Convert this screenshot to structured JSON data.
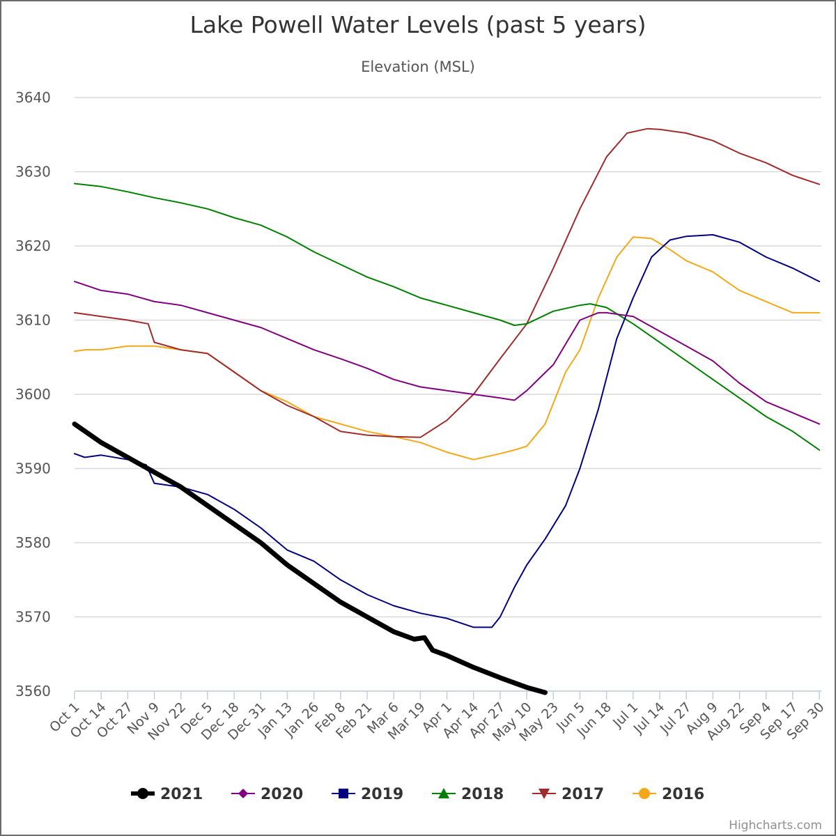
{
  "chart_data": {
    "type": "line",
    "title": "Lake Powell Water Levels (past 5 years)",
    "subtitle": "Elevation (MSL)",
    "ylim": [
      3560,
      3640
    ],
    "yticks": [
      3560,
      3570,
      3580,
      3590,
      3600,
      3610,
      3620,
      3630,
      3640
    ],
    "xlim": [
      0,
      365
    ],
    "grid": true,
    "xticks": [
      {
        "label": "Oct 1",
        "day": 0
      },
      {
        "label": "Oct 14",
        "day": 13
      },
      {
        "label": "Oct 27",
        "day": 26
      },
      {
        "label": "Nov 9",
        "day": 39
      },
      {
        "label": "Nov 22",
        "day": 52
      },
      {
        "label": "Dec 5",
        "day": 65
      },
      {
        "label": "Dec 18",
        "day": 78
      },
      {
        "label": "Dec 31",
        "day": 91
      },
      {
        "label": "Jan 13",
        "day": 104
      },
      {
        "label": "Jan 26",
        "day": 117
      },
      {
        "label": "Feb 8",
        "day": 130
      },
      {
        "label": "Feb 21",
        "day": 143
      },
      {
        "label": "Mar 6",
        "day": 156
      },
      {
        "label": "Mar 19",
        "day": 169
      },
      {
        "label": "Apr 1",
        "day": 182
      },
      {
        "label": "Apr 14",
        "day": 195
      },
      {
        "label": "Apr 27",
        "day": 208
      },
      {
        "label": "May 10",
        "day": 221
      },
      {
        "label": "May 23",
        "day": 234
      },
      {
        "label": "Jun 5",
        "day": 247
      },
      {
        "label": "Jun 18",
        "day": 260
      },
      {
        "label": "Jul 1",
        "day": 273
      },
      {
        "label": "Jul 14",
        "day": 286
      },
      {
        "label": "Jul 27",
        "day": 299
      },
      {
        "label": "Aug 9",
        "day": 312
      },
      {
        "label": "Aug 22",
        "day": 325
      },
      {
        "label": "Sep 4",
        "day": 338
      },
      {
        "label": "Sep 17",
        "day": 351
      },
      {
        "label": "Sep 30",
        "day": 364
      }
    ],
    "legend_position": "bottom-center",
    "series": [
      {
        "name": "2021",
        "color": "#000000",
        "width": 7,
        "marker": "circle",
        "x": [
          0,
          13,
          26,
          39,
          52,
          65,
          78,
          91,
          104,
          117,
          130,
          143,
          156,
          166,
          171,
          175,
          182,
          195,
          208,
          221,
          230
        ],
        "y": [
          3596,
          3593.5,
          3591.5,
          3589.5,
          3587.5,
          3585,
          3582.5,
          3580,
          3577,
          3574.5,
          3572,
          3570,
          3568,
          3567,
          3567.2,
          3565.5,
          3564.8,
          3563.2,
          3561.8,
          3560.5,
          3559.8
        ]
      },
      {
        "name": "2020",
        "color": "#800080",
        "width": 2,
        "marker": "diamond",
        "x": [
          0,
          13,
          26,
          39,
          52,
          65,
          78,
          91,
          104,
          117,
          130,
          143,
          156,
          169,
          182,
          195,
          208,
          215,
          221,
          234,
          247,
          256,
          260,
          273,
          286,
          299,
          312,
          325,
          338,
          351,
          364
        ],
        "y": [
          3615.2,
          3614,
          3613.5,
          3612.5,
          3612,
          3611,
          3610,
          3609,
          3607.5,
          3606,
          3604.8,
          3603.5,
          3602,
          3601,
          3600.5,
          3600,
          3599.5,
          3599.2,
          3600.5,
          3604,
          3610,
          3611,
          3611,
          3610.5,
          3608.5,
          3606.5,
          3604.5,
          3601.5,
          3599,
          3597.5,
          3596
        ]
      },
      {
        "name": "2019",
        "color": "#000080",
        "width": 2,
        "marker": "square",
        "x": [
          0,
          5,
          13,
          26,
          35,
          39,
          52,
          65,
          78,
          91,
          104,
          117,
          130,
          143,
          156,
          169,
          182,
          195,
          204,
          208,
          215,
          221,
          230,
          240,
          247,
          256,
          265,
          273,
          282,
          291,
          299,
          312,
          325,
          338,
          351,
          364
        ],
        "y": [
          3592,
          3591.5,
          3591.8,
          3591.2,
          3590.5,
          3588,
          3587.5,
          3586.5,
          3584.5,
          3582,
          3579,
          3577.5,
          3575,
          3573,
          3571.5,
          3570.5,
          3569.8,
          3568.6,
          3568.6,
          3570,
          3574,
          3577,
          3580.5,
          3585,
          3590,
          3598,
          3607.5,
          3613,
          3618.5,
          3620.8,
          3621.3,
          3621.5,
          3620.5,
          3618.5,
          3617,
          3615.2
        ]
      },
      {
        "name": "2018",
        "color": "#008000",
        "width": 2,
        "marker": "triangle",
        "x": [
          0,
          13,
          26,
          39,
          52,
          65,
          78,
          91,
          104,
          117,
          130,
          143,
          156,
          169,
          182,
          195,
          208,
          215,
          221,
          234,
          247,
          252,
          260,
          273,
          286,
          299,
          312,
          325,
          338,
          351,
          364
        ],
        "y": [
          3628.4,
          3628,
          3627.3,
          3626.5,
          3625.8,
          3625,
          3623.8,
          3622.8,
          3621.2,
          3619.2,
          3617.5,
          3615.8,
          3614.5,
          3613,
          3612,
          3611,
          3610,
          3609.3,
          3609.5,
          3611.2,
          3612,
          3612.2,
          3611.7,
          3609.5,
          3607,
          3604.5,
          3602,
          3599.5,
          3597,
          3595,
          3592.5
        ]
      },
      {
        "name": "2017",
        "color": "#9f2b2b",
        "width": 2,
        "marker": "triangle-down",
        "x": [
          0,
          13,
          26,
          36,
          39,
          52,
          65,
          78,
          91,
          104,
          117,
          130,
          143,
          156,
          169,
          182,
          195,
          208,
          221,
          234,
          247,
          260,
          270,
          280,
          286,
          299,
          312,
          325,
          338,
          351,
          364
        ],
        "y": [
          3611,
          3610.5,
          3610,
          3609.5,
          3607,
          3606,
          3605.5,
          3603,
          3600.5,
          3598.5,
          3597,
          3595,
          3594.5,
          3594.3,
          3594.2,
          3596.5,
          3600,
          3604.8,
          3609.5,
          3617,
          3625,
          3632,
          3635.2,
          3635.8,
          3635.7,
          3635.2,
          3634.2,
          3632.5,
          3631.2,
          3629.5,
          3628.3
        ]
      },
      {
        "name": "2016",
        "color": "#f4a817",
        "width": 2,
        "marker": "circle",
        "x": [
          0,
          5,
          13,
          26,
          39,
          52,
          65,
          78,
          91,
          104,
          117,
          130,
          143,
          156,
          169,
          182,
          195,
          208,
          215,
          221,
          230,
          240,
          247,
          256,
          265,
          273,
          282,
          291,
          299,
          312,
          325,
          338,
          351,
          364
        ],
        "y": [
          3605.8,
          3606,
          3606,
          3606.5,
          3606.5,
          3606,
          3605.5,
          3603,
          3600.5,
          3599,
          3597,
          3596,
          3595,
          3594.3,
          3593.5,
          3592.2,
          3591.2,
          3592,
          3592.5,
          3593,
          3596,
          3603,
          3606,
          3613,
          3618.5,
          3621.2,
          3621,
          3619.5,
          3618,
          3616.5,
          3614,
          3612.5,
          3611,
          3611
        ]
      }
    ]
  },
  "credits": "Highcharts.com"
}
